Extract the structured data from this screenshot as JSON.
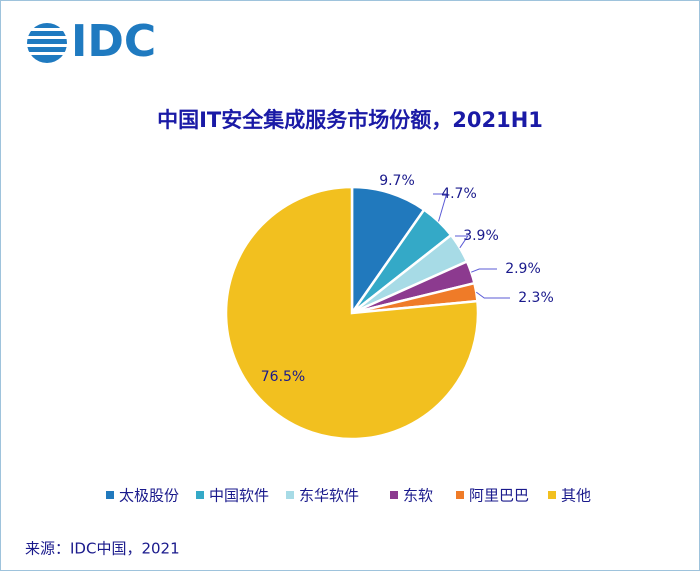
{
  "chart_data": {
    "type": "pie",
    "logo": "IDC",
    "title": "中国IT安全集成服务市场份额，2021H1",
    "categories": [
      "太极股份",
      "中国软件",
      "东华软件",
      "东软",
      "阿里巴巴",
      "其他"
    ],
    "values": [
      9.7,
      4.7,
      3.9,
      2.9,
      2.3,
      76.5
    ],
    "value_labels": [
      "9.7%",
      "4.7%",
      "3.9%",
      "2.9%",
      "2.3%",
      "76.5%"
    ],
    "colors": [
      "#2179bd",
      "#34a9c7",
      "#a7dbe6",
      "#8c3a8f",
      "#ef7b28",
      "#f2c01f"
    ],
    "source": "来源：IDC中国，2021"
  }
}
